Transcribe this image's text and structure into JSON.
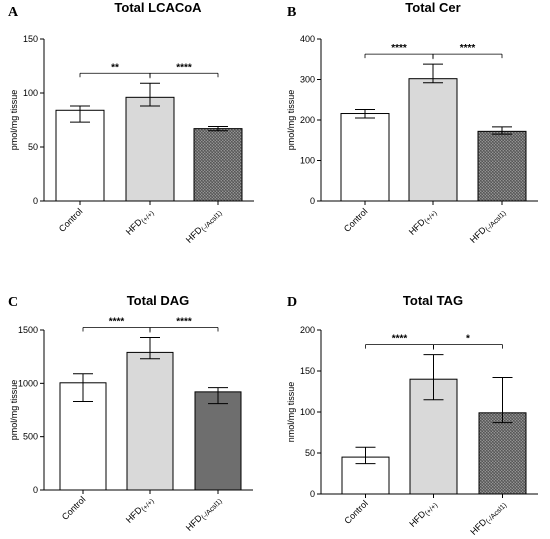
{
  "chart_data": [
    {
      "panel": "A",
      "type": "bar",
      "title": "Total LCACoA",
      "ylabel": "pmol/mg tissue",
      "categories": [
        "Control",
        "HFD(+/+)",
        "HFD(-/Acsl1)"
      ],
      "category_labels": [
        {
          "main": "Control",
          "sub": ""
        },
        {
          "main": "HFD",
          "sub": "(+/+)"
        },
        {
          "main": "HFD",
          "sub": "(-/Acsl1)"
        }
      ],
      "values": [
        84,
        96,
        67
      ],
      "error_low": [
        73,
        88,
        65
      ],
      "error_high": [
        88,
        109,
        69
      ],
      "ylim": [
        0,
        150
      ],
      "yticks": [
        0,
        50,
        100,
        150
      ],
      "fills": [
        "white",
        "light-grey",
        "dark-hatch"
      ],
      "significance": [
        {
          "from": 0,
          "to": 1,
          "label": "**"
        },
        {
          "from": 1,
          "to": 2,
          "label": "****"
        }
      ]
    },
    {
      "panel": "B",
      "type": "bar",
      "title": "Total Cer",
      "ylabel": "pmol/mg tissue",
      "categories": [
        "Control",
        "HFD(+/+)",
        "HFD(-/Acsl1)"
      ],
      "category_labels": [
        {
          "main": "Control",
          "sub": ""
        },
        {
          "main": "HFD",
          "sub": "(+/+)"
        },
        {
          "main": "HFD",
          "sub": "(-/Acsl1)"
        }
      ],
      "values": [
        216,
        302,
        172
      ],
      "error_low": [
        205,
        292,
        165
      ],
      "error_high": [
        226,
        338,
        183
      ],
      "ylim": [
        0,
        400
      ],
      "yticks": [
        0,
        100,
        200,
        300,
        400
      ],
      "fills": [
        "white",
        "light-grey",
        "dark-hatch"
      ],
      "significance": [
        {
          "from": 0,
          "to": 1,
          "label": "****"
        },
        {
          "from": 1,
          "to": 2,
          "label": "****"
        }
      ]
    },
    {
      "panel": "C",
      "type": "bar",
      "title": "Total DAG",
      "ylabel": "pmol/mg tissue",
      "categories": [
        "Control",
        "HFD(+/+)",
        "HFD(-/Acsl1)"
      ],
      "category_labels": [
        {
          "main": "Control",
          "sub": ""
        },
        {
          "main": "HFD",
          "sub": "(+/+)"
        },
        {
          "main": "HFD",
          "sub": "(-/Acsl1)"
        }
      ],
      "values": [
        1005,
        1290,
        920
      ],
      "error_low": [
        830,
        1230,
        810
      ],
      "error_high": [
        1090,
        1430,
        960
      ],
      "ylim": [
        0,
        1500
      ],
      "yticks": [
        0,
        500,
        1000,
        1500
      ],
      "fills": [
        "white",
        "light-grey",
        "dark-grey"
      ],
      "significance": [
        {
          "from": 0,
          "to": 1,
          "label": "****"
        },
        {
          "from": 1,
          "to": 2,
          "label": "****"
        }
      ]
    },
    {
      "panel": "D",
      "type": "bar",
      "title": "Total TAG",
      "ylabel": "nmol/mg tissue",
      "categories": [
        "Control",
        "HFD(+/+)",
        "HFD(-/Acsl1)"
      ],
      "category_labels": [
        {
          "main": "Control",
          "sub": ""
        },
        {
          "main": "HFD",
          "sub": "(+/+)"
        },
        {
          "main": "HFD",
          "sub": "(-/Acsl1)"
        }
      ],
      "values": [
        45,
        140,
        99
      ],
      "error_low": [
        37,
        115,
        87
      ],
      "error_high": [
        57,
        170,
        142
      ],
      "ylim": [
        0,
        200
      ],
      "yticks": [
        0,
        50,
        100,
        150,
        200
      ],
      "fills": [
        "white",
        "light-grey",
        "dark-hatch"
      ],
      "significance": [
        {
          "from": 0,
          "to": 1,
          "label": "****"
        },
        {
          "from": 1,
          "to": 2,
          "label": "*"
        }
      ]
    }
  ]
}
